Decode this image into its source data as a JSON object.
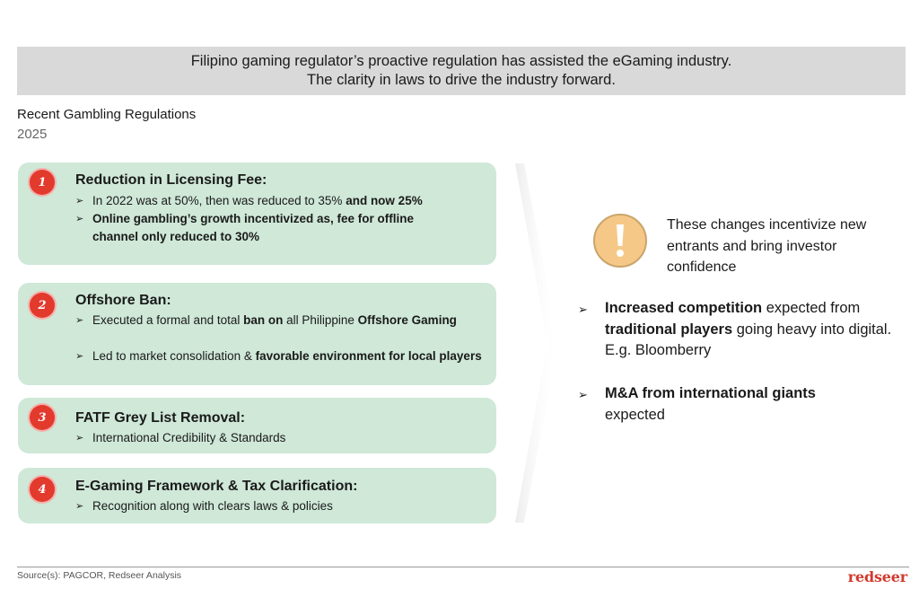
{
  "banner": {
    "line1": "Filipino gaming regulator’s proactive regulation has assisted the eGaming industry.",
    "line2": "The clarity in laws to drive the industry forward."
  },
  "section": {
    "title": "Recent Gambling Regulations",
    "year": "2025"
  },
  "cards": [
    {
      "number": "1",
      "title": "Reduction in Licensing Fee:",
      "bullets": [
        {
          "plain": "In 2022 was at 50%, then was reduced to 35% ",
          "bold": "and now 25%"
        },
        {
          "bold": "Online gambling’s growth incentivized as, fee for offline channel only reduced to 30%"
        }
      ]
    },
    {
      "number": "2",
      "title": "Offshore Ban:",
      "bullets": [
        {
          "plain1": "Executed a formal and total ",
          "bold1": "ban on",
          "plain2": " all Philippine ",
          "bold2": "Offshore Gaming"
        },
        {
          "plain": "Led to market consolidation & ",
          "bold": "favorable environment for local",
          "plain2": " players"
        }
      ]
    },
    {
      "number": "3",
      "title": "FATF Grey List Removal:",
      "bullets": [
        {
          "plain": "International Credibility & Standards"
        }
      ]
    },
    {
      "number": "4",
      "title": "E-Gaming Framework & Tax Clarification:",
      "bullets": [
        {
          "plain": "Recognition along with clears laws & policies"
        }
      ]
    }
  ],
  "right": {
    "icon": "exclamation-icon",
    "callout": "These changes incentivize new entrants and bring investor confidence",
    "points": [
      {
        "bold1": "Increased competition",
        "plain1": " expected from ",
        "bold2": "traditional players",
        "plain2": " going heavy into digital. E.g. Bloomberry"
      },
      {
        "bold1": "M&A from international giants",
        "plain1": " expected"
      }
    ]
  },
  "footer": {
    "source": "Source(s): PAGCOR, Redseer Analysis",
    "logo": "redseer"
  },
  "colors": {
    "card_bg": "#cfe8d8",
    "number_badge": "#e23a2d",
    "banner_bg": "#d9d9d9",
    "warn_bg": "#f6c888",
    "logo": "#d23a2e"
  }
}
